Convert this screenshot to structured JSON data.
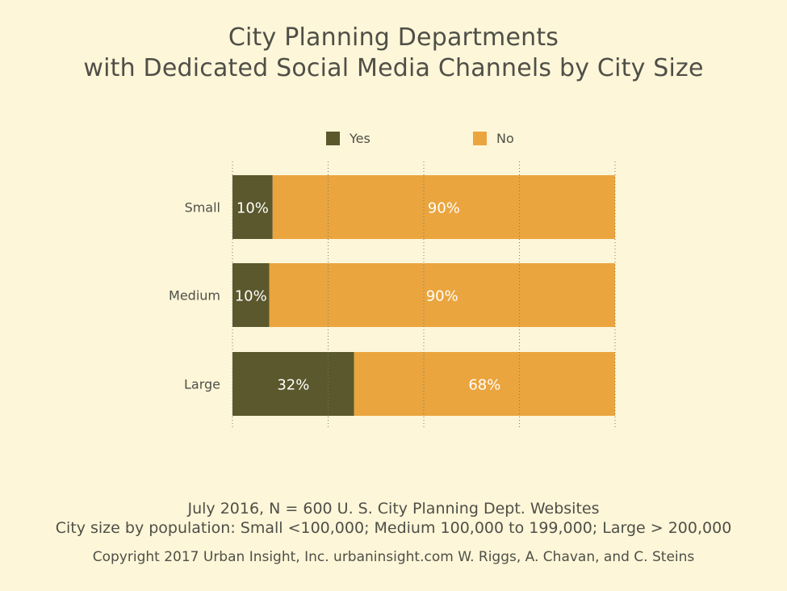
{
  "colors": {
    "background": "#fdf6d8",
    "yes": "#5a582c",
    "no": "#eaa53e",
    "grid": "#7a7a70",
    "text": "#4f4f48",
    "bar_label": "#ffffff"
  },
  "chart_data": {
    "type": "bar",
    "orientation": "horizontal",
    "stacked": true,
    "title": "City Planning Departments",
    "subtitle": "with Dedicated Social Media Channels by City Size",
    "categories": [
      "Small",
      "Medium",
      "Large"
    ],
    "series": [
      {
        "name": "Yes",
        "values": [
          10.5,
          9.6,
          31.8
        ],
        "labels": [
          "10%",
          "10%",
          "32%"
        ]
      },
      {
        "name": "No",
        "values": [
          89.5,
          90.4,
          68.2
        ],
        "labels": [
          "90%",
          "90%",
          "68%"
        ]
      }
    ],
    "xlim": [
      0,
      100
    ],
    "grid": true,
    "grid_style": "dotted",
    "legend_position": "top"
  },
  "footer": {
    "line1": "July 2016, N = 600 U. S. City Planning Dept. Websites",
    "line2": "City size by population:  Small <100,000; Medium 100,000 to 199,000; Large > 200,000",
    "line3": "Copyright 2017 Urban Insight, Inc. urbaninsight.com  W. Riggs, A. Chavan, and C. Steins"
  }
}
